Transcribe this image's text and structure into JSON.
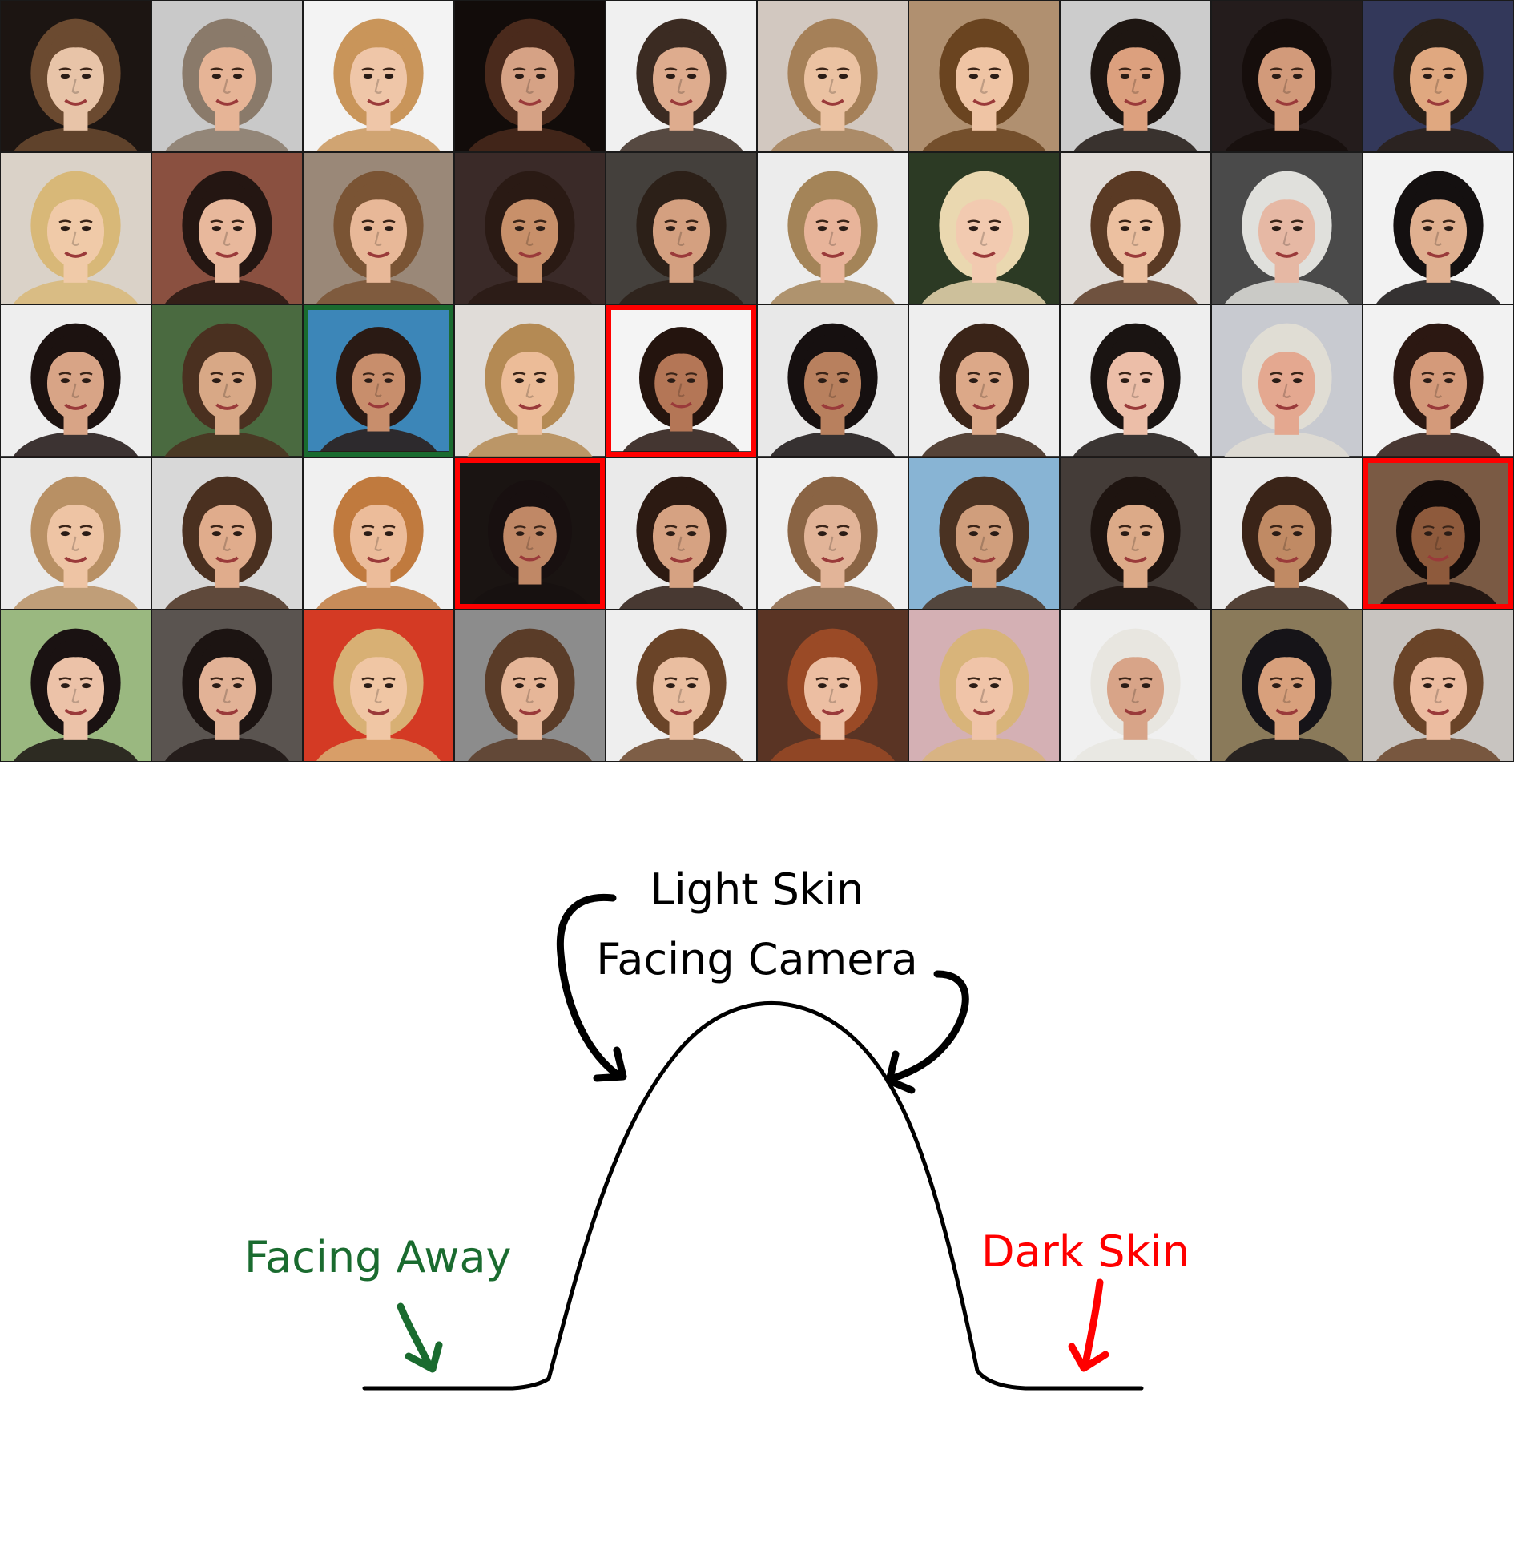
{
  "grid": {
    "rows": 5,
    "cols": 10,
    "highlights": [
      {
        "row": 2,
        "col": 2,
        "color": "#1a6b2f"
      },
      {
        "row": 2,
        "col": 4,
        "color": "#ff0000"
      },
      {
        "row": 3,
        "col": 3,
        "color": "#ff0000"
      },
      {
        "row": 3,
        "col": 9,
        "color": "#ff0000"
      }
    ],
    "faces": [
      {
        "bg": "#1c1512",
        "skin": "#e8c4a8",
        "hair": "#6b4a30"
      },
      {
        "bg": "#c9c9c9",
        "skin": "#e6b496",
        "hair": "#8a7a6a"
      },
      {
        "bg": "#f3f3f3",
        "skin": "#efc6a8",
        "hair": "#c9955a"
      },
      {
        "bg": "#120c0a",
        "skin": "#d6a285",
        "hair": "#4a2a1c"
      },
      {
        "bg": "#f0f0f0",
        "skin": "#deac8e",
        "hair": "#3b2b22"
      },
      {
        "bg": "#d2c8c0",
        "skin": "#ebc2a2",
        "hair": "#a58058"
      },
      {
        "bg": "#b09070",
        "skin": "#efc4a4",
        "hair": "#6a4420"
      },
      {
        "bg": "#cccccc",
        "skin": "#dca07e",
        "hair": "#1e1612"
      },
      {
        "bg": "#241c1c",
        "skin": "#d29a7a",
        "hair": "#160e0c"
      },
      {
        "bg": "#33385a",
        "skin": "#e0a880",
        "hair": "#2a2018"
      },
      {
        "bg": "#dad2c8",
        "skin": "#f0caa8",
        "hair": "#d8b878"
      },
      {
        "bg": "#8a5040",
        "skin": "#e8b89c",
        "hair": "#241612"
      },
      {
        "bg": "#9a8878",
        "skin": "#e8b898",
        "hair": "#7a5434"
      },
      {
        "bg": "#3a2a28",
        "skin": "#c8906a",
        "hair": "#2a1a14"
      },
      {
        "bg": "#44403c",
        "skin": "#d4a080",
        "hair": "#2c2018"
      },
      {
        "bg": "#ececec",
        "skin": "#e8b49a",
        "hair": "#a48458"
      },
      {
        "bg": "#2c3a24",
        "skin": "#f2cab0",
        "hair": "#ead8b0"
      },
      {
        "bg": "#e0dcd8",
        "skin": "#ecc0a0",
        "hair": "#5a3a24"
      },
      {
        "bg": "#4a4a4a",
        "skin": "#e6b8a4",
        "hair": "#e0e0dc"
      },
      {
        "bg": "#f2f2f2",
        "skin": "#e0b090",
        "hair": "#141010"
      },
      {
        "bg": "#eeeeee",
        "skin": "#d8a486",
        "hair": "#1c1210"
      },
      {
        "bg": "#4a6a40",
        "skin": "#d8a886",
        "hair": "#4a3020"
      },
      {
        "bg": "#3c86b8",
        "skin": "#c88e6c",
        "hair": "#2a1a14"
      },
      {
        "bg": "#e0dcd8",
        "skin": "#ecbc98",
        "hair": "#b48a54"
      },
      {
        "bg": "#f4f4f4",
        "skin": "#b47656",
        "hair": "#24140e"
      },
      {
        "bg": "#e8e8e8",
        "skin": "#b8805e",
        "hair": "#161010"
      },
      {
        "bg": "#eeeeee",
        "skin": "#dca888",
        "hair": "#3a2418"
      },
      {
        "bg": "#eeeeee",
        "skin": "#ecbea8",
        "hair": "#1a1412"
      },
      {
        "bg": "#c8cad0",
        "skin": "#e4a890",
        "hair": "#e0ddd4"
      },
      {
        "bg": "#f2f2f2",
        "skin": "#d49a7a",
        "hair": "#2c1812"
      },
      {
        "bg": "#eaeaea",
        "skin": "#eec4a4",
        "hair": "#b89064"
      },
      {
        "bg": "#d8d8d8",
        "skin": "#e0ac8c",
        "hair": "#4a3020"
      },
      {
        "bg": "#f0f0f0",
        "skin": "#ecbc9a",
        "hair": "#c07a3e"
      },
      {
        "bg": "#1a1412",
        "skin": "#c08866",
        "hair": "#181010"
      },
      {
        "bg": "#eaeaea",
        "skin": "#d6a282",
        "hair": "#2c1a12"
      },
      {
        "bg": "#f0f0f0",
        "skin": "#e2b498",
        "hair": "#8a6444"
      },
      {
        "bg": "#88b4d4",
        "skin": "#d09e7c",
        "hair": "#4a3222"
      },
      {
        "bg": "#443c38",
        "skin": "#dcaa88",
        "hair": "#1e1410"
      },
      {
        "bg": "#ebebeb",
        "skin": "#c08a64",
        "hair": "#3a2418"
      },
      {
        "bg": "#7a5a44",
        "skin": "#8e5a3c",
        "hair": "#140c0a"
      },
      {
        "bg": "#9ab880",
        "skin": "#ecc2a8",
        "hair": "#1a1212"
      },
      {
        "bg": "#5a5450",
        "skin": "#e2b296",
        "hair": "#1c1412"
      },
      {
        "bg": "#d43a24",
        "skin": "#f0c6a4",
        "hair": "#d8b074"
      },
      {
        "bg": "#8c8c8c",
        "skin": "#e6b698",
        "hair": "#5a3c28"
      },
      {
        "bg": "#eeeeee",
        "skin": "#eabea0",
        "hair": "#6a4428"
      },
      {
        "bg": "#5a3424",
        "skin": "#ecbea2",
        "hair": "#9a4a26"
      },
      {
        "bg": "#d4b0b4",
        "skin": "#f0c4a8",
        "hair": "#d8b47a"
      },
      {
        "bg": "#f0f0f0",
        "skin": "#d8a488",
        "hair": "#e8e6e0"
      },
      {
        "bg": "#8a7a5a",
        "skin": "#d8a07c",
        "hair": "#161418"
      },
      {
        "bg": "#c8c4c0",
        "skin": "#ecbca0",
        "hair": "#6a4428"
      }
    ]
  },
  "diagram": {
    "top_label_line1": "Light Skin",
    "top_label_line2": "Facing Camera",
    "left_label": "Facing Away",
    "right_label": "Dark Skin",
    "colors": {
      "curve": "#000000",
      "top_label": "#000000",
      "left_label": "#1a6b2f",
      "right_label": "#ff0000"
    }
  }
}
